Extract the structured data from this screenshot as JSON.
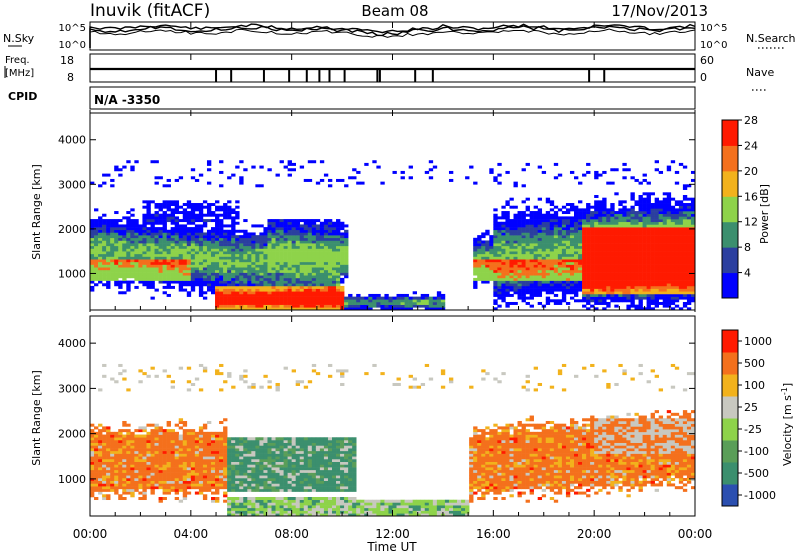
{
  "header": {
    "station": "Inuvik (fitACF)",
    "beam": "Beam 08",
    "date": "17/Nov/2013"
  },
  "chart_data": [
    {
      "type": "line",
      "panel": "noise",
      "left_label": "N.Sky",
      "right_label": "N.Search",
      "left_ticks": [
        "10^5",
        "10^0"
      ],
      "right_ticks": [
        "10^5",
        "10^0"
      ],
      "scale": "log"
    },
    {
      "type": "line",
      "panel": "frequency",
      "left_label_1": "Freq.",
      "left_label_2": "[MHz]",
      "right_label": "Nave",
      "left_ticks": [
        18,
        8
      ],
      "right_ticks": [
        60,
        0
      ],
      "freq_value": 8,
      "nave_spike_hours": [
        5,
        5.6,
        6.9,
        7.9,
        8.6,
        9.1,
        9.5,
        10.1,
        11.4,
        11.5,
        12.9,
        13.6,
        19.8,
        20.4
      ],
      "cpid_label": "CPID",
      "cpid_value": "N/A -3350"
    },
    {
      "type": "heatmap",
      "panel": "power",
      "ylabel": "Slant Range [km]",
      "ylim": [
        180,
        4600
      ],
      "yticks": [
        1000,
        2000,
        3000,
        4000
      ],
      "colorbar_label": "Power [dB]",
      "colorbar_ticks": [
        4,
        8,
        12,
        16,
        20,
        24,
        28
      ],
      "colors": [
        "#0000ff",
        "#2b3f9f",
        "#3b8f6e",
        "#8ed34a",
        "#f2b21c",
        "#f4701c",
        "#ff1a00"
      ]
    },
    {
      "type": "heatmap",
      "panel": "velocity",
      "ylabel": "Slant Range [km]",
      "ylim": [
        180,
        4600
      ],
      "yticks": [
        1000,
        2000,
        3000,
        4000
      ],
      "xlabel": "Time UT",
      "xticks": [
        "00:00",
        "04:00",
        "08:00",
        "12:00",
        "16:00",
        "20:00",
        "00:00"
      ],
      "colorbar_label": "Velocity [m s",
      "colorbar_label_exponent": "-1",
      "colorbar_label_close": "]",
      "colorbar_ticks": [
        "1000",
        "500",
        "100",
        "25",
        "-25",
        "-100",
        "-500",
        "-1000"
      ],
      "colors": [
        "#2b4fb0",
        "#3b8f6e",
        "#5a9e58",
        "#8ed34a",
        "#c8c8c0",
        "#f2b21c",
        "#f4701c",
        "#ff1a00"
      ]
    }
  ]
}
